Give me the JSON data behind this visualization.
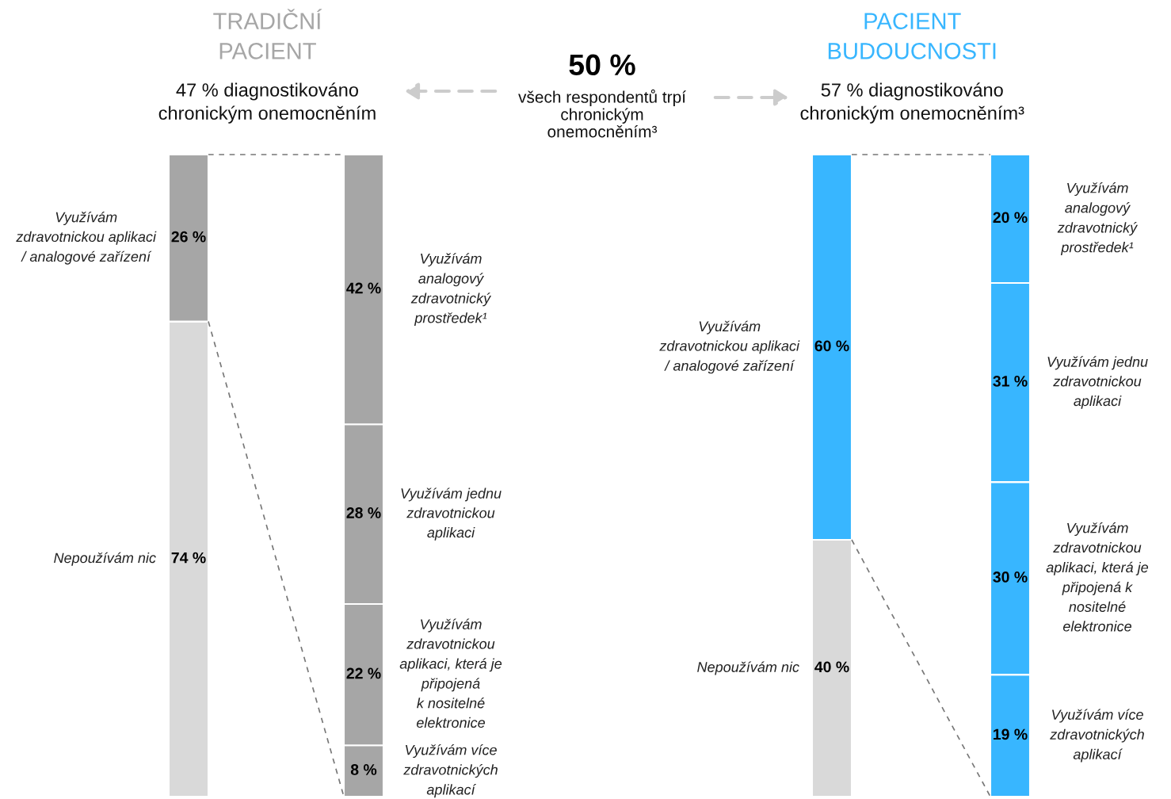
{
  "chart_data": [
    {
      "type": "bar",
      "stacked": true,
      "data_labels": true,
      "title": "TRADIČNÍ\nPACIENT",
      "subtitle": "47 % diagnostikováno\nchronickým onemocněním",
      "categories": [
        null
      ],
      "series": [
        {
          "name": "Nepoužívám nic",
          "color": "#d9d9d9",
          "values": [
            74
          ],
          "value_labels": [
            "74 %"
          ]
        },
        {
          "name": "Využívám\nzdravotnickou aplikaci\n/ analogové zařízení",
          "color": "#a6a6a6",
          "values": [
            26
          ],
          "value_labels": [
            "26 %"
          ]
        }
      ]
    },
    {
      "type": "bar",
      "stacked": true,
      "data_labels": true,
      "categories": [
        null
      ],
      "series": [
        {
          "name": "Využívám více\nzdravotnických\naplikací",
          "color": "#a6a6a6",
          "values": [
            8
          ],
          "value_labels": [
            "8 %"
          ]
        },
        {
          "name": "Využívám\nzdravotnickou\naplikaci, která je\npřipojená\nk nositelné\nelektronice",
          "color": "#a6a6a6",
          "values": [
            22
          ],
          "value_labels": [
            "22 %"
          ]
        },
        {
          "name": "Využívám jednu\nzdravotnickou\naplikaci",
          "color": "#a6a6a6",
          "values": [
            28
          ],
          "value_labels": [
            "28 %"
          ]
        },
        {
          "name": "Využívám\nanalogový\nzdravotnický\nprostředek¹",
          "color": "#a6a6a6",
          "values": [
            42
          ],
          "value_labels": [
            "42 %"
          ]
        }
      ]
    },
    {
      "type": "other",
      "title": "50 %",
      "subtitle": "všech respondentů trpí\nchronickým\nonemocněním³"
    },
    {
      "type": "bar",
      "stacked": true,
      "data_labels": true,
      "title": "PACIENT\nBUDOUCNOSTI",
      "subtitle": "57 % diagnostikováno\nchronickým onemocněním³",
      "categories": [
        null
      ],
      "series": [
        {
          "name": "Nepoužívám nic",
          "color": "#d9d9d9",
          "values": [
            40
          ],
          "value_labels": [
            "40 %"
          ]
        },
        {
          "name": "Využívám\nzdravotnickou aplikaci\n/ analogové zařízení",
          "color": "#38b6ff",
          "values": [
            60
          ],
          "value_labels": [
            "60 %"
          ]
        }
      ]
    },
    {
      "type": "bar",
      "stacked": true,
      "data_labels": true,
      "categories": [
        null
      ],
      "series": [
        {
          "name": "Využívám více\nzdravotnických\naplikací",
          "color": "#38b6ff",
          "values": [
            19
          ],
          "value_labels": [
            "19 %"
          ]
        },
        {
          "name": "Využívám\nzdravotnickou\naplikaci, která je\npřipojená k\nnositelné\nelektronice",
          "color": "#38b6ff",
          "values": [
            30
          ],
          "value_labels": [
            "30 %"
          ]
        },
        {
          "name": "Využívám jednu\nzdravotnickou\naplikaci",
          "color": "#38b6ff",
          "values": [
            31
          ],
          "value_labels": [
            "31 %"
          ]
        },
        {
          "name": "Využívám\nanalogový\nzdravotnický\nprostředek¹",
          "color": "#38b6ff",
          "values": [
            20
          ],
          "value_labels": [
            "20 %"
          ]
        }
      ]
    }
  ]
}
